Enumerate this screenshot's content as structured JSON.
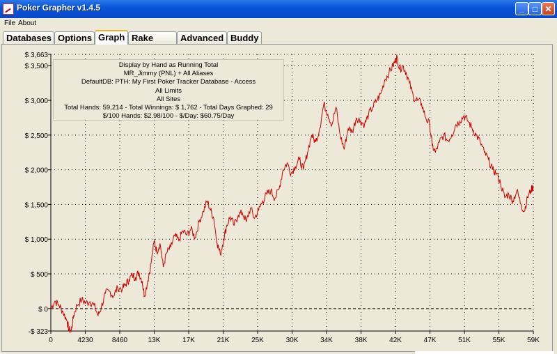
{
  "window": {
    "title": "Poker Grapher v1.4.5"
  },
  "menu": [
    "File",
    "About"
  ],
  "tabs": [
    {
      "label": "Databases",
      "active": false
    },
    {
      "label": "Options",
      "active": false
    },
    {
      "label": "Graph",
      "active": true
    },
    {
      "label": "Rake Calc",
      "active": false
    },
    {
      "label": "Advanced",
      "active": false
    },
    {
      "label": "Buddy",
      "active": false
    }
  ],
  "info": {
    "line1": "Display by Hand as Running Total",
    "line2": "MR_Jimmy (PNL) + All Aliases",
    "line3": "DefaultDB: PTH: My First Poker Tracker Database - Access",
    "line4": "All Limits",
    "line5": "All Sites",
    "line6": "Total Hands: 59,214 - Total Winnings: $ 1,762 - Total Days Graphed: 29",
    "line7": "$/100 Hands: $2.98/100 - $/Day: $60.75/Day"
  },
  "colors": {
    "line": "#cc0000",
    "grid": "#000000",
    "accent": "#0a55d8"
  },
  "chart_data": {
    "type": "line",
    "xlim": [
      0,
      59214
    ],
    "ylim": [
      -323,
      3663
    ],
    "y_ticks": [
      {
        "v": 3663,
        "label": "$ 3,663"
      },
      {
        "v": 3500,
        "label": "$ 3,500"
      },
      {
        "v": 3000,
        "label": "$ 3,000"
      },
      {
        "v": 2500,
        "label": "$ 2,500"
      },
      {
        "v": 2000,
        "label": "$ 2,000"
      },
      {
        "v": 1500,
        "label": "$ 1,500"
      },
      {
        "v": 1000,
        "label": "$ 1,000"
      },
      {
        "v": 500,
        "label": "$ 500"
      },
      {
        "v": 0,
        "label": "$ 0"
      },
      {
        "v": -323,
        "label": "-$ 323"
      }
    ],
    "x_ticks": [
      {
        "v": 0,
        "label": "0"
      },
      {
        "v": 4230,
        "label": "4230"
      },
      {
        "v": 8460,
        "label": "8460"
      },
      {
        "v": 12690,
        "label": "13K"
      },
      {
        "v": 16920,
        "label": "17K"
      },
      {
        "v": 21150,
        "label": "21K"
      },
      {
        "v": 25380,
        "label": "25K"
      },
      {
        "v": 29610,
        "label": "30K"
      },
      {
        "v": 33840,
        "label": "34K"
      },
      {
        "v": 38070,
        "label": "38K"
      },
      {
        "v": 42300,
        "label": "42K"
      },
      {
        "v": 46530,
        "label": "47K"
      },
      {
        "v": 50760,
        "label": "51K"
      },
      {
        "v": 54990,
        "label": "55K"
      },
      {
        "v": 59214,
        "label": "59K"
      }
    ],
    "series": [
      {
        "values": [
          [
            0,
            0
          ],
          [
            500,
            110
          ],
          [
            1000,
            50
          ],
          [
            1500,
            -50
          ],
          [
            2000,
            -180
          ],
          [
            2200,
            -300
          ],
          [
            2500,
            -323
          ],
          [
            2800,
            -100
          ],
          [
            3200,
            50
          ],
          [
            3800,
            130
          ],
          [
            4300,
            80
          ],
          [
            4800,
            100
          ],
          [
            5300,
            50
          ],
          [
            5800,
            -100
          ],
          [
            6200,
            20
          ],
          [
            6700,
            220
          ],
          [
            7200,
            250
          ],
          [
            7700,
            180
          ],
          [
            8200,
            300
          ],
          [
            8800,
            290
          ],
          [
            9200,
            350
          ],
          [
            9600,
            420
          ],
          [
            10000,
            480
          ],
          [
            10400,
            450
          ],
          [
            10800,
            520
          ],
          [
            11200,
            400
          ],
          [
            11500,
            180
          ],
          [
            11900,
            400
          ],
          [
            12300,
            650
          ],
          [
            12700,
            980
          ],
          [
            13000,
            820
          ],
          [
            13400,
            940
          ],
          [
            13800,
            600
          ],
          [
            14200,
            800
          ],
          [
            14700,
            880
          ],
          [
            15200,
            1050
          ],
          [
            15700,
            980
          ],
          [
            16200,
            1120
          ],
          [
            16700,
            1060
          ],
          [
            17200,
            1150
          ],
          [
            17700,
            1020
          ],
          [
            18200,
            1250
          ],
          [
            18700,
            1400
          ],
          [
            19200,
            1550
          ],
          [
            19600,
            1420
          ],
          [
            20000,
            1300
          ],
          [
            20400,
            950
          ],
          [
            20800,
            780
          ],
          [
            21200,
            1000
          ],
          [
            21600,
            1200
          ],
          [
            22000,
            1320
          ],
          [
            22500,
            1200
          ],
          [
            23000,
            1350
          ],
          [
            23500,
            1380
          ],
          [
            24000,
            1250
          ],
          [
            24500,
            1450
          ],
          [
            25000,
            1300
          ],
          [
            25500,
            1420
          ],
          [
            26000,
            1550
          ],
          [
            26500,
            1650
          ],
          [
            27000,
            1700
          ],
          [
            27500,
            1590
          ],
          [
            28000,
            1720
          ],
          [
            28500,
            2000
          ],
          [
            29000,
            2100
          ],
          [
            29500,
            1950
          ],
          [
            30000,
            2050
          ],
          [
            30500,
            2150
          ],
          [
            31000,
            2000
          ],
          [
            31500,
            2250
          ],
          [
            32000,
            2500
          ],
          [
            32500,
            2400
          ],
          [
            33000,
            2600
          ],
          [
            33500,
            2950
          ],
          [
            34000,
            2800
          ],
          [
            34500,
            2650
          ],
          [
            35000,
            2900
          ],
          [
            35500,
            2500
          ],
          [
            36000,
            2300
          ],
          [
            36500,
            2600
          ],
          [
            37000,
            2550
          ],
          [
            37500,
            2750
          ],
          [
            38000,
            2700
          ],
          [
            38500,
            2650
          ],
          [
            39000,
            2800
          ],
          [
            39500,
            2900
          ],
          [
            40000,
            3000
          ],
          [
            40500,
            3100
          ],
          [
            41000,
            3300
          ],
          [
            41500,
            3400
          ],
          [
            42000,
            3500
          ],
          [
            42300,
            3580
          ],
          [
            42500,
            3620
          ],
          [
            42800,
            3450
          ],
          [
            43200,
            3500
          ],
          [
            43600,
            3400
          ],
          [
            44000,
            3250
          ],
          [
            44500,
            3050
          ],
          [
            45000,
            3000
          ],
          [
            45500,
            2950
          ],
          [
            46000,
            2750
          ],
          [
            46500,
            2650
          ],
          [
            46800,
            2350
          ],
          [
            47200,
            2250
          ],
          [
            47700,
            2400
          ],
          [
            48200,
            2500
          ],
          [
            48700,
            2420
          ],
          [
            49200,
            2500
          ],
          [
            49700,
            2650
          ],
          [
            50200,
            2700
          ],
          [
            50700,
            2780
          ],
          [
            51200,
            2700
          ],
          [
            51700,
            2600
          ],
          [
            52200,
            2500
          ],
          [
            52700,
            2400
          ],
          [
            53200,
            2250
          ],
          [
            53700,
            2150
          ],
          [
            54200,
            2000
          ],
          [
            54700,
            1950
          ],
          [
            55200,
            1800
          ],
          [
            55700,
            1600
          ],
          [
            56200,
            1650
          ],
          [
            56700,
            1550
          ],
          [
            57200,
            1700
          ],
          [
            57700,
            1500
          ],
          [
            58100,
            1400
          ],
          [
            58500,
            1600
          ],
          [
            58900,
            1700
          ],
          [
            59214,
            1762
          ]
        ]
      }
    ]
  }
}
